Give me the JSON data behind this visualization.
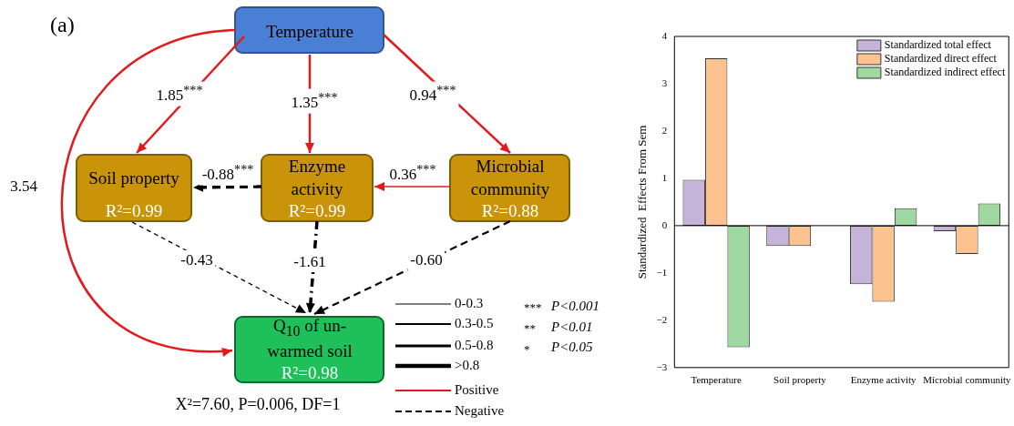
{
  "chart_data": [
    {
      "type": "other",
      "annotations": [
        "(a)",
        "Temperature",
        "Soil property",
        "R²=0.99",
        "Enzyme activity",
        "R²=0.99",
        "Microbial community",
        "R²=0.88",
        "Q$_{10}$ of un-warmed soil",
        "R²=0.98",
        "1.85$^{***}$",
        "1.35$^{***}$",
        "0.94$^{***}$",
        "3.54",
        "-0.88$^{***}$",
        "0.36$^{***}$",
        "-0.43",
        "-1.61",
        "-0.60",
        "X²=7.60, P=0.006, DF=1",
        "0-0.3",
        "0.3-0.5",
        "0.5-0.8",
        ">0.8",
        "Positive",
        "Negative",
        "***",
        "P<0.001",
        "**",
        "P<0.01",
        "*",
        "P<0.05"
      ]
    },
    {
      "type": "bar",
      "ylabel": "Standardized  Effects From Sem",
      "categories": [
        "Temperature",
        "Soil property",
        "Enzyme activity",
        "Microbial community"
      ],
      "series": [
        {
          "name": "Standardized total effect",
          "color": "#c5b3d9",
          "values": [
            0.97,
            -0.43,
            -1.24,
            -0.12
          ]
        },
        {
          "name": "Standardized direct effect",
          "color": "#fcc391",
          "values": [
            3.54,
            -0.43,
            -1.61,
            -0.6
          ]
        },
        {
          "name": "Standardized indirect effect",
          "color": "#9fd8a0",
          "values": [
            -2.57,
            0,
            0.37,
            0.47
          ]
        }
      ],
      "ylim": [
        -3,
        4
      ],
      "yticks": [
        -3,
        -2,
        -1,
        0,
        1,
        2,
        3,
        4
      ],
      "legend": "top right"
    }
  ]
}
